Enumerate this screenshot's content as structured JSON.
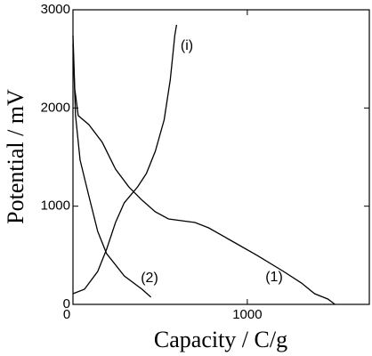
{
  "chart_data": {
    "type": "line",
    "x_label": "Capacity / C/g",
    "y_label": "Potential / mV",
    "xlim": [
      0,
      1700
    ],
    "xticks": [
      0,
      1000
    ],
    "ylim": [
      0,
      3000
    ],
    "yticks": [
      0,
      1000,
      2000,
      3000
    ],
    "series": [
      {
        "name": "(1)",
        "color": "#000000",
        "x": [
          0,
          10,
          30,
          91,
          168,
          244,
          320,
          396,
          472,
          548,
          624,
          700,
          777,
          904,
          1056,
          1208,
          1310,
          1386,
          1462,
          1503
        ],
        "values": [
          2738,
          2194,
          1922,
          1831,
          1650,
          1378,
          1197,
          1061,
          943,
          870,
          852,
          834,
          780,
          653,
          499,
          335,
          218,
          109,
          54,
          0
        ]
      },
      {
        "name": "(2)",
        "color": "#000000",
        "x": [
          0,
          15,
          41,
          91,
          142,
          193,
          294,
          396,
          447
        ],
        "values": [
          2647,
          1922,
          1469,
          1106,
          743,
          517,
          290,
          154,
          73
        ]
      },
      {
        "name": "(i)",
        "color": "#000000",
        "x": [
          0,
          66,
          142,
          193,
          244,
          294,
          371,
          421,
          472,
          523,
          558,
          584,
          594
        ],
        "values": [
          109,
          154,
          335,
          562,
          834,
          1034,
          1197,
          1333,
          1559,
          1877,
          2285,
          2738,
          2847
        ]
      }
    ]
  }
}
